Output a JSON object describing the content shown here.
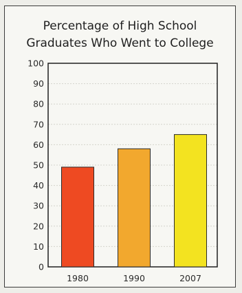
{
  "chart_data": {
    "type": "bar",
    "title_lines": [
      "Percentage of High School",
      "Graduates Who Went to College"
    ],
    "categories": [
      "1980",
      "1990",
      "2007"
    ],
    "values": [
      49,
      58,
      65
    ],
    "colors": [
      "#ee4a22",
      "#f2a82e",
      "#f3e320"
    ],
    "ylim": [
      0,
      100
    ],
    "yticks": [
      "0",
      "10",
      "20",
      "30",
      "40",
      "50",
      "60",
      "70",
      "80",
      "90",
      "100"
    ],
    "grid": true,
    "xlabel": "",
    "ylabel": ""
  }
}
